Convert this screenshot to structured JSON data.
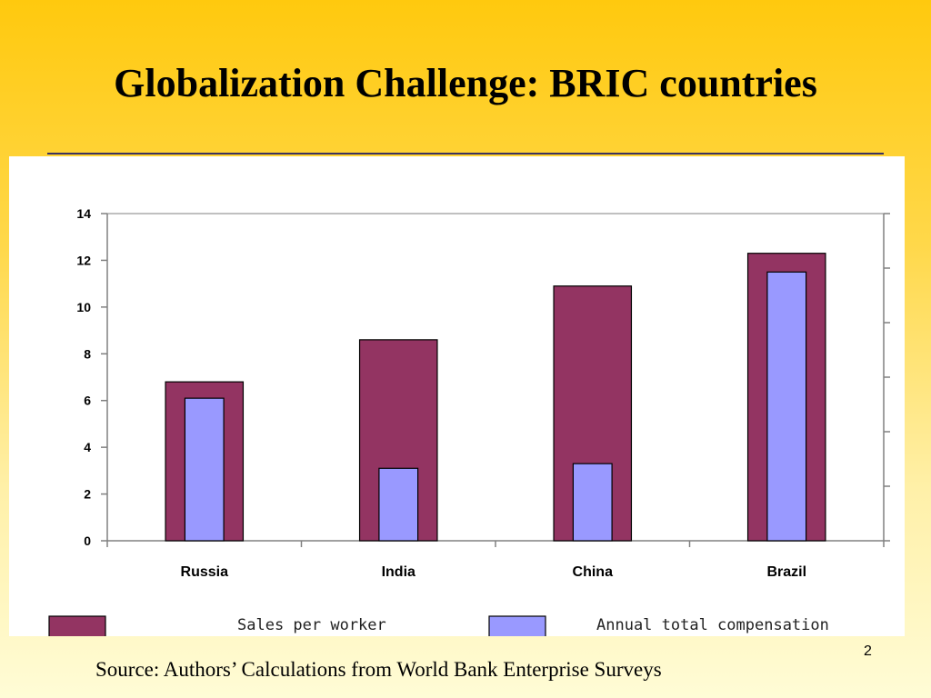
{
  "slide": {
    "title": "Globalization Challenge: BRIC countries",
    "source": "Source: Authors’ Calculations from World Bank Enterprise Surveys",
    "page_number": "2"
  },
  "colors": {
    "sales": "#933462",
    "compensation": "#9999ff",
    "axis": "#808080"
  },
  "chart_data": {
    "type": "bar",
    "categories": [
      "Russia",
      "India",
      "China",
      "Brazil"
    ],
    "series": [
      {
        "name": "Sales per worker",
        "values": [
          6.8,
          8.6,
          10.9,
          12.3
        ]
      },
      {
        "name": "Annual total compensation",
        "values": [
          6.1,
          3.1,
          3.3,
          11.5
        ]
      }
    ],
    "yticks": [
      "0",
      "2",
      "4",
      "6",
      "8",
      "10",
      "12",
      "14"
    ],
    "ylim": [
      0,
      14
    ],
    "title": "",
    "xlabel": "",
    "ylabel": "",
    "grid": false,
    "legend_position": "bottom"
  }
}
